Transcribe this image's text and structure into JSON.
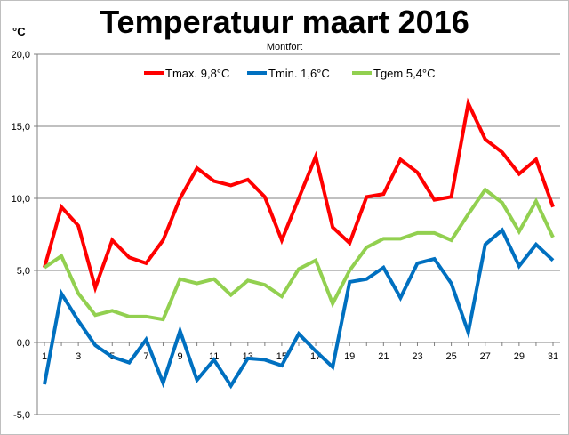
{
  "chart_data": {
    "type": "line",
    "title": "Temperatuur maart 2016",
    "subtitle": "Montfort",
    "ylabel": "°C",
    "xlabel": "",
    "ylim": [
      -5,
      20
    ],
    "y_ticks": [
      "20,0",
      "15,0",
      "10,0",
      "5,0",
      "0,0",
      "-5,0"
    ],
    "y_tick_values": [
      20,
      15,
      10,
      5,
      0,
      -5
    ],
    "x": [
      1,
      2,
      3,
      4,
      5,
      6,
      7,
      8,
      9,
      10,
      11,
      12,
      13,
      14,
      15,
      16,
      17,
      18,
      19,
      20,
      21,
      22,
      23,
      24,
      25,
      26,
      27,
      28,
      29,
      30,
      31
    ],
    "x_tick_labels": [
      "1",
      "3",
      "5",
      "7",
      "9",
      "11",
      "13",
      "15",
      "17",
      "19",
      "21",
      "23",
      "25",
      "27",
      "29",
      "31"
    ],
    "x_tick_values": [
      1,
      3,
      5,
      7,
      9,
      11,
      13,
      15,
      17,
      19,
      21,
      23,
      25,
      27,
      29,
      31
    ],
    "grid": "horizontal",
    "legend_position": "top",
    "series": [
      {
        "name": "Tmax. 9,8°C",
        "color": "#ff0000",
        "values": [
          5.2,
          9.4,
          8.1,
          3.8,
          7.1,
          5.9,
          5.5,
          7.1,
          10.0,
          12.1,
          11.2,
          10.9,
          11.3,
          10.1,
          7.1,
          10.0,
          12.9,
          8.0,
          6.9,
          10.1,
          10.3,
          12.7,
          11.8,
          9.9,
          10.1,
          16.6,
          14.1,
          13.2,
          11.7,
          12.7,
          9.4
        ]
      },
      {
        "name": "Tmin. 1,6°C",
        "color": "#0070c0",
        "values": [
          -2.9,
          3.4,
          1.5,
          -0.2,
          -1.0,
          -1.4,
          0.2,
          -2.8,
          0.8,
          -2.6,
          -1.2,
          -3.0,
          -1.1,
          -1.2,
          -1.6,
          0.6,
          -0.6,
          -1.7,
          4.2,
          4.4,
          5.2,
          3.1,
          5.5,
          5.8,
          4.1,
          0.7,
          6.8,
          7.8,
          5.3,
          6.8,
          5.7
        ]
      },
      {
        "name": "Tgem 5,4°C",
        "color": "#92d050",
        "values": [
          5.2,
          6.0,
          3.4,
          1.9,
          2.2,
          1.8,
          1.8,
          1.6,
          4.4,
          4.1,
          4.4,
          3.3,
          4.3,
          4.0,
          3.2,
          5.1,
          5.7,
          2.7,
          5.0,
          6.6,
          7.2,
          7.2,
          7.6,
          7.6,
          7.1,
          8.9,
          10.6,
          9.7,
          7.7,
          9.8,
          7.3
        ]
      }
    ]
  }
}
